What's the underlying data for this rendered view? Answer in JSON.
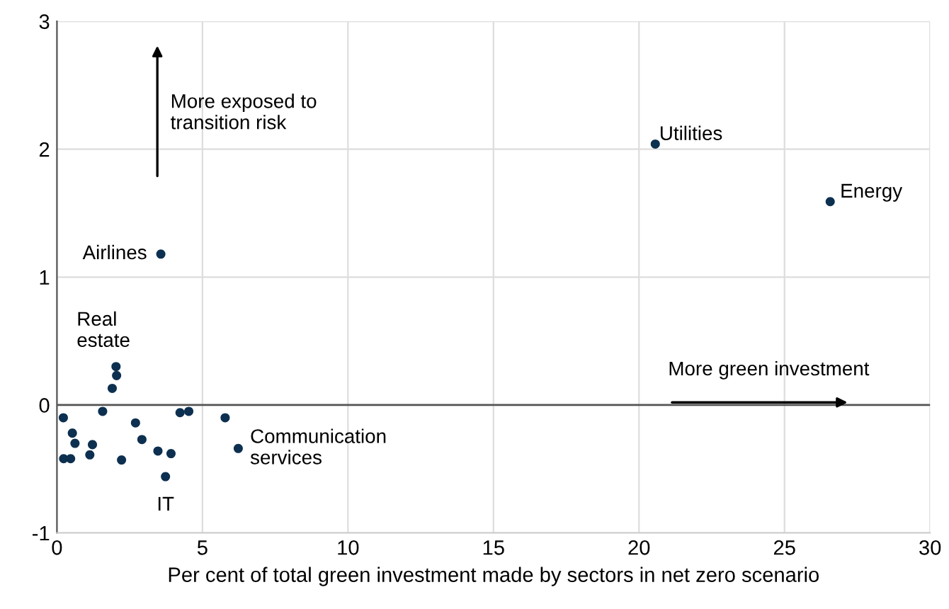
{
  "chart_data": {
    "type": "scatter",
    "xlabel": "Per cent of total green investment made by sectors in net zero scenario",
    "x": [
      20.56,
      26.57,
      3.57,
      2.03,
      2.05,
      1.9,
      0.22,
      1.57,
      4.23,
      4.53,
      5.78,
      0.53,
      0.62,
      1.22,
      1.13,
      0.23,
      0.47,
      2.22,
      2.7,
      2.92,
      3.47,
      3.92,
      3.73,
      6.23
    ],
    "values": [
      2.04,
      1.59,
      1.18,
      0.3,
      0.23,
      0.13,
      -0.1,
      -0.05,
      -0.06,
      -0.05,
      -0.1,
      -0.22,
      -0.3,
      -0.31,
      -0.39,
      -0.42,
      -0.42,
      -0.43,
      -0.14,
      -0.27,
      -0.36,
      -0.38,
      -0.56,
      -0.34
    ],
    "color": "#0d3050",
    "marker": "circle",
    "xlim": [
      0,
      30
    ],
    "xticks": [
      0,
      5,
      10,
      15,
      20,
      25,
      30
    ],
    "ylim": [
      -1,
      3
    ],
    "yticks": [
      -1,
      0,
      1,
      2,
      3
    ],
    "grid": true,
    "annotations": [
      {
        "text": "Utilities",
        "x": 20.56,
        "y": 2.04
      },
      {
        "text": "Energy",
        "x": 26.57,
        "y": 1.59
      },
      {
        "text": "Airlines",
        "x": 3.57,
        "y": 1.18
      },
      {
        "text": "Real\nestate",
        "x": 2.03,
        "y": 0.3
      },
      {
        "text": "IT",
        "x": 3.73,
        "y": -0.56
      },
      {
        "text": "Communication\nservices",
        "x": 6.23,
        "y": -0.34
      },
      "More exposed to\ntransition risk",
      "More green investment"
    ]
  }
}
